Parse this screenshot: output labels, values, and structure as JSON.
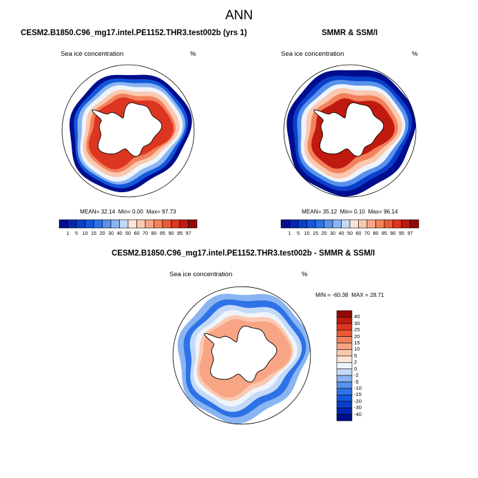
{
  "page": {
    "title": "ANN"
  },
  "colors": {
    "full_scale": [
      "#000d8c",
      "#0426ad",
      "#0a3fcb",
      "#1358dc",
      "#2d72e6",
      "#5792ec",
      "#8ab4f2",
      "#c3d9f7",
      "#eef4fb",
      "#fde4d6",
      "#fbc8b0",
      "#f8a585",
      "#f3815c",
      "#ec5a36",
      "#dd3620",
      "#c01a10",
      "#930808"
    ],
    "diff_scale": [
      "#000d8c",
      "#0426ad",
      "#0a3fcb",
      "#1358dc",
      "#2d72e6",
      "#5792ec",
      "#8ab4f2",
      "#c3d9f7",
      "#eef4fb",
      "#fde4d6",
      "#fbc8b0",
      "#f8a585",
      "#f3815c",
      "#ec5a36",
      "#dd3620",
      "#c01a10",
      "#930808"
    ],
    "land": "#ffffff",
    "coast": "#000000"
  },
  "chart_data": [
    {
      "type": "heatmap",
      "title": "CESM2.B1850.C96_mg17.intel.PE1152.THR3.test002b (yrs 1)",
      "variable": "Sea ice concentration",
      "units": "%",
      "stats": {
        "mean_label": "MEAN=",
        "mean": "32.14",
        "min_label": "Min=",
        "min": "0.00",
        "max_label": "Max=",
        "max": "97.73"
      },
      "levels": [
        "1",
        "5",
        "10",
        "15",
        "20",
        "30",
        "40",
        "50",
        "60",
        "70",
        "80",
        "85",
        "90",
        "95",
        "97"
      ]
    },
    {
      "type": "heatmap",
      "title": "SMMR & SSM/I",
      "variable": "Sea ice concentration",
      "units": "%",
      "stats": {
        "mean_label": "MEAN=",
        "mean": "35.12",
        "min_label": "Min=",
        "min": "0.10",
        "max_label": "Max=",
        "max": "96.14"
      },
      "levels": [
        "1",
        "5",
        "10",
        "15",
        "20",
        "30",
        "40",
        "50",
        "60",
        "70",
        "80",
        "85",
        "90",
        "95",
        "97"
      ]
    },
    {
      "type": "heatmap",
      "title": "CESM2.B1850.C96_mg17.intel.PE1152.THR3.test002b - SMMR & SSM/I",
      "variable": "Sea ice concentration",
      "units": "%",
      "stats": {
        "min_label": "MIN =",
        "min": "-60.38",
        "max_label": "MAX =",
        "max": "28.71"
      },
      "levels": [
        "40",
        "30",
        "25",
        "20",
        "15",
        "10",
        "5",
        "2",
        "0",
        "-2",
        "-5",
        "-10",
        "-15",
        "-20",
        "-30",
        "-40"
      ]
    }
  ]
}
